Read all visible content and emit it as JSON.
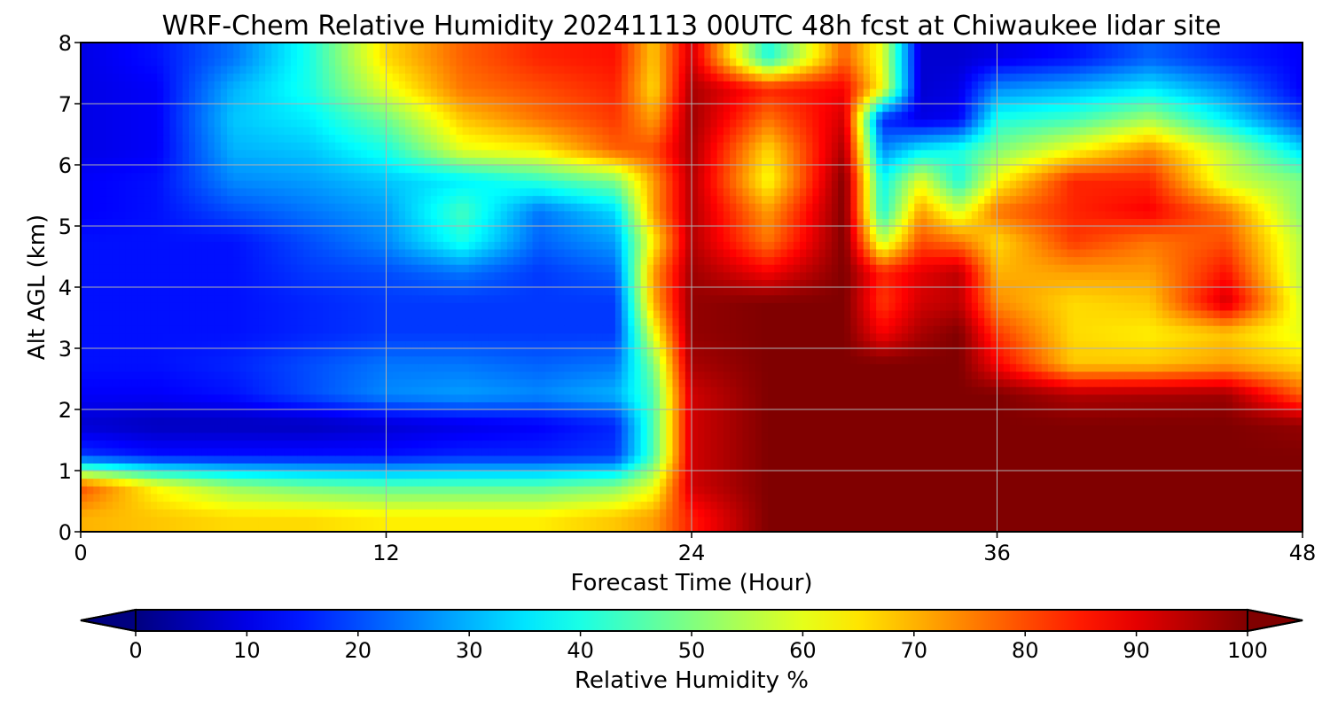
{
  "chart_data": {
    "type": "heatmap",
    "title": "WRF-Chem Relative Humidity 20241113 00UTC 48h fcst at Chiwaukee lidar site",
    "xlabel": "Forecast Time (Hour)",
    "ylabel": "Alt AGL (km)",
    "xlim": [
      0,
      48
    ],
    "ylim": [
      0,
      8
    ],
    "x_ticks": [
      0,
      12,
      24,
      36,
      48
    ],
    "y_ticks": [
      0,
      1,
      2,
      3,
      4,
      5,
      6,
      7,
      8
    ],
    "grid": true,
    "colorbar": {
      "label": "Relative Humidity %",
      "ticks": [
        0,
        10,
        20,
        30,
        40,
        50,
        60,
        70,
        80,
        90,
        100
      ],
      "range": [
        0,
        100
      ],
      "colormap": "jet",
      "extend": "both",
      "orientation": "horizontal",
      "placement": "bottom"
    },
    "x": [
      0,
      3,
      6,
      9,
      12,
      15,
      18,
      21,
      22.5,
      24,
      27,
      30,
      31.5,
      33,
      34.5,
      36,
      39,
      42,
      45,
      48
    ],
    "y": [
      0.25,
      0.75,
      1.25,
      1.75,
      2.25,
      2.75,
      3.25,
      3.75,
      4.25,
      4.75,
      5.25,
      5.75,
      6.25,
      6.75,
      7.25,
      7.75
    ],
    "values": [
      [
        70,
        68,
        66,
        66,
        64,
        64,
        64,
        68,
        72,
        85,
        100,
        100,
        100,
        100,
        100,
        100,
        100,
        100,
        100,
        100
      ],
      [
        80,
        62,
        52,
        48,
        46,
        46,
        46,
        50,
        60,
        92,
        100,
        100,
        100,
        100,
        100,
        100,
        100,
        100,
        100,
        100
      ],
      [
        18,
        14,
        14,
        14,
        14,
        16,
        16,
        18,
        45,
        92,
        100,
        100,
        100,
        100,
        100,
        100,
        100,
        100,
        100,
        100
      ],
      [
        8,
        6,
        6,
        6,
        8,
        10,
        12,
        16,
        45,
        92,
        100,
        100,
        100,
        100,
        100,
        100,
        100,
        100,
        100,
        98
      ],
      [
        12,
        12,
        14,
        20,
        26,
        28,
        26,
        30,
        45,
        92,
        100,
        100,
        100,
        100,
        100,
        100,
        95,
        96,
        97,
        78
      ],
      [
        14,
        14,
        16,
        20,
        24,
        24,
        22,
        24,
        50,
        96,
        100,
        100,
        100,
        100,
        100,
        88,
        68,
        68,
        72,
        66
      ],
      [
        14,
        14,
        14,
        16,
        18,
        18,
        18,
        18,
        60,
        98,
        100,
        100,
        88,
        96,
        100,
        82,
        66,
        64,
        68,
        60
      ],
      [
        14,
        14,
        14,
        16,
        18,
        18,
        18,
        18,
        70,
        98,
        100,
        100,
        82,
        92,
        94,
        74,
        66,
        68,
        92,
        58
      ],
      [
        14,
        14,
        14,
        18,
        20,
        24,
        18,
        22,
        72,
        97,
        88,
        100,
        84,
        90,
        94,
        70,
        72,
        72,
        86,
        55
      ],
      [
        14,
        14,
        14,
        20,
        26,
        40,
        22,
        28,
        64,
        95,
        76,
        100,
        56,
        80,
        76,
        66,
        82,
        76,
        80,
        55
      ],
      [
        12,
        14,
        20,
        24,
        28,
        44,
        24,
        34,
        72,
        95,
        72,
        100,
        40,
        72,
        58,
        76,
        84,
        88,
        76,
        50
      ],
      [
        12,
        14,
        26,
        28,
        32,
        36,
        42,
        50,
        72,
        95,
        62,
        100,
        38,
        60,
        40,
        62,
        84,
        84,
        58,
        50
      ],
      [
        10,
        12,
        30,
        32,
        40,
        60,
        64,
        78,
        80,
        96,
        66,
        96,
        26,
        36,
        40,
        50,
        62,
        74,
        56,
        34
      ],
      [
        10,
        12,
        32,
        36,
        48,
        68,
        76,
        82,
        72,
        97,
        76,
        92,
        16,
        10,
        12,
        40,
        44,
        54,
        36,
        18
      ],
      [
        10,
        12,
        30,
        40,
        60,
        76,
        80,
        84,
        66,
        96,
        84,
        88,
        62,
        8,
        10,
        26,
        30,
        36,
        26,
        12
      ],
      [
        10,
        14,
        24,
        40,
        66,
        78,
        84,
        86,
        68,
        92,
        40,
        78,
        60,
        8,
        8,
        10,
        14,
        22,
        16,
        12
      ]
    ]
  }
}
